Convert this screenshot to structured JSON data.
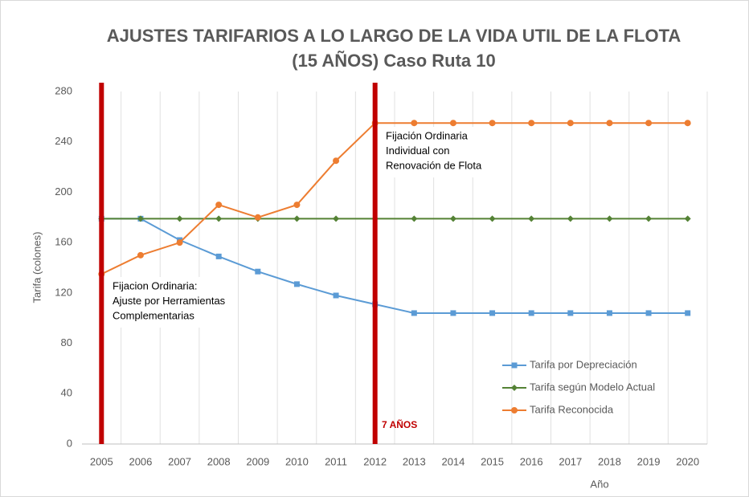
{
  "chart_data": {
    "type": "line",
    "title": [
      "AJUSTES TARIFARIOS A LO LARGO DE LA VIDA UTIL DE LA FLOTA",
      "(15 AÑOS) Caso Ruta 10"
    ],
    "y_label": "Tarifa (colones)",
    "x_label": "Año",
    "categories": [
      "2005",
      "2006",
      "2007",
      "2008",
      "2009",
      "2010",
      "2011",
      "2012",
      "2013",
      "2014",
      "2015",
      "2016",
      "2017",
      "2018",
      "2019",
      "2020"
    ],
    "series": [
      {
        "name": "Tarifa por Depreciación",
        "color": "#5b9bd5",
        "marker": "square",
        "values": [
          179,
          179,
          162,
          149,
          137,
          127,
          118,
          111,
          104,
          104,
          104,
          104,
          104,
          104,
          104,
          104
        ]
      },
      {
        "name": "Tarifa según Modelo Actual",
        "color": "#548235",
        "marker": "diamond",
        "values": [
          179,
          179,
          179,
          179,
          179,
          179,
          179,
          179,
          179,
          179,
          179,
          179,
          179,
          179,
          179,
          179
        ]
      },
      {
        "name": "Tarifa Reconocida",
        "color": "#ed7d31",
        "marker": "circle",
        "values": [
          135,
          150,
          160,
          190,
          180,
          190,
          225,
          255,
          255,
          255,
          255,
          255,
          255,
          255,
          255,
          255
        ]
      }
    ],
    "ylim": [
      0,
      280
    ],
    "yticks": [
      0,
      40,
      80,
      120,
      160,
      200,
      240,
      280
    ],
    "grid": "x",
    "legend": "lower right",
    "reference_lines": {
      "color": "#c00000",
      "categories": [
        "2005",
        "2012"
      ]
    },
    "annotations": [
      {
        "lines": [
          "Fijacion Ordinaria:",
          "Ajuste por Herramientas",
          "Complementarias"
        ]
      },
      {
        "lines": [
          "Fijación Ordinaria",
          "Individual con",
          "Renovación de Flota"
        ]
      },
      {
        "lines": [
          "7 AÑOS"
        ],
        "color": "#c00000"
      }
    ]
  }
}
